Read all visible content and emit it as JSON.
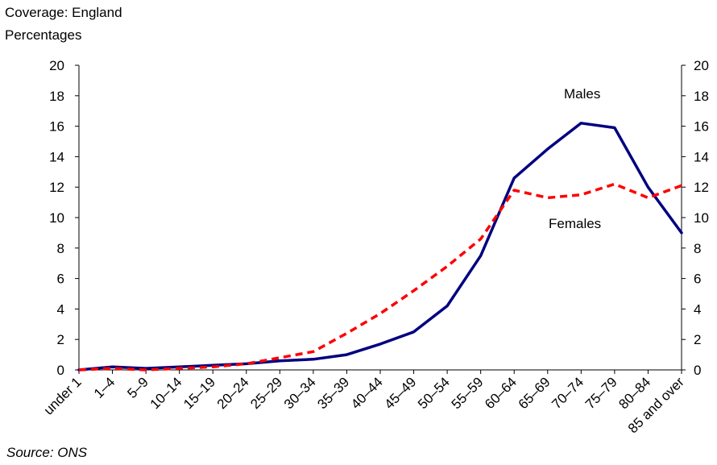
{
  "header": {
    "coverage": "Coverage: England",
    "units": "Percentages"
  },
  "source": "Source: ONS",
  "chart_data": {
    "type": "line",
    "title": "",
    "xlabel": "",
    "ylabel": "Percentages",
    "ylim": [
      0,
      20
    ],
    "yticks": [
      0,
      2,
      4,
      6,
      8,
      10,
      12,
      14,
      16,
      18,
      20
    ],
    "right_axis_mirrors_left": true,
    "grid": false,
    "legend": "none (series labelled directly on chart)",
    "categories": [
      "under 1",
      "1–4",
      "5–9",
      "10–14",
      "15–19",
      "20–24",
      "25–29",
      "30–34",
      "35–39",
      "40–44",
      "45–49",
      "50–54",
      "55–59",
      "60–64",
      "65–69",
      "70–74",
      "75–79",
      "80–84",
      "85 and over"
    ],
    "series": [
      {
        "name": "Males",
        "color": "#000080",
        "style": "solid",
        "values": [
          0.0,
          0.2,
          0.1,
          0.2,
          0.3,
          0.4,
          0.6,
          0.7,
          1.0,
          1.7,
          2.5,
          4.2,
          7.5,
          12.6,
          14.5,
          16.2,
          15.9,
          12.0,
          9.0
        ]
      },
      {
        "name": "Females",
        "color": "#ff0000",
        "style": "dashed",
        "values": [
          0.0,
          0.1,
          0.0,
          0.1,
          0.2,
          0.4,
          0.8,
          1.2,
          2.4,
          3.7,
          5.2,
          6.8,
          8.6,
          11.8,
          11.3,
          11.5,
          12.2,
          11.3,
          12.1
        ]
      }
    ]
  }
}
